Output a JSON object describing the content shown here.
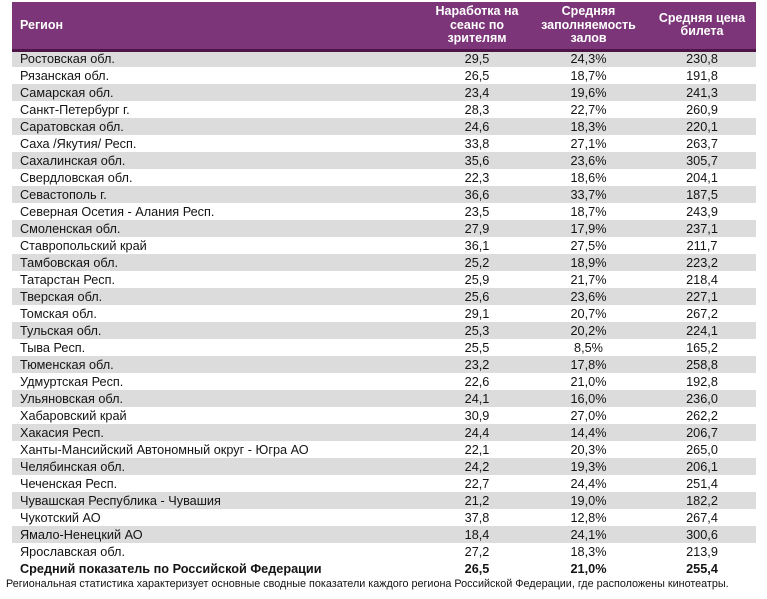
{
  "table": {
    "columns": [
      {
        "label": "Регион"
      },
      {
        "label": "Наработка на сеанс по зрителям"
      },
      {
        "label": "Средняя заполняемость залов"
      },
      {
        "label": "Средняя цена билета"
      }
    ],
    "rows": [
      [
        "Ростовская обл.",
        "29,5",
        "24,3%",
        "230,8"
      ],
      [
        "Рязанская обл.",
        "26,5",
        "18,7%",
        "191,8"
      ],
      [
        "Самарская обл.",
        "23,4",
        "19,6%",
        "241,3"
      ],
      [
        "Санкт-Петербург г.",
        "28,3",
        "22,7%",
        "260,9"
      ],
      [
        "Саратовская обл.",
        "24,6",
        "18,3%",
        "220,1"
      ],
      [
        "Саха /Якутия/ Респ.",
        "33,8",
        "27,1%",
        "263,7"
      ],
      [
        "Сахалинская обл.",
        "35,6",
        "23,6%",
        "305,7"
      ],
      [
        "Свердловская обл.",
        "22,3",
        "18,6%",
        "204,1"
      ],
      [
        "Севастополь г.",
        "36,6",
        "33,7%",
        "187,5"
      ],
      [
        "Северная Осетия - Алания Респ.",
        "23,5",
        "18,7%",
        "243,9"
      ],
      [
        "Смоленская обл.",
        "27,9",
        "17,9%",
        "237,1"
      ],
      [
        "Ставропольский край",
        "36,1",
        "27,5%",
        "211,7"
      ],
      [
        "Тамбовская обл.",
        "25,2",
        "18,9%",
        "223,2"
      ],
      [
        "Татарстан Респ.",
        "25,9",
        "21,7%",
        "218,4"
      ],
      [
        "Тверская обл.",
        "25,6",
        "23,6%",
        "227,1"
      ],
      [
        "Томская обл.",
        "29,1",
        "20,7%",
        "267,2"
      ],
      [
        "Тульская обл.",
        "25,3",
        "20,2%",
        "224,1"
      ],
      [
        "Тыва Респ.",
        "25,5",
        "8,5%",
        "165,2"
      ],
      [
        "Тюменская обл.",
        "23,2",
        "17,8%",
        "258,8"
      ],
      [
        "Удмуртская Респ.",
        "22,6",
        "21,0%",
        "192,8"
      ],
      [
        "Ульяновская обл.",
        "24,1",
        "16,0%",
        "236,0"
      ],
      [
        "Хабаровский край",
        "30,9",
        "27,0%",
        "262,2"
      ],
      [
        "Хакасия Респ.",
        "24,4",
        "14,4%",
        "206,7"
      ],
      [
        "Ханты-Мансийский Автономный округ - Югра АО",
        "22,1",
        "20,3%",
        "265,0"
      ],
      [
        "Челябинская обл.",
        "24,2",
        "19,3%",
        "206,1"
      ],
      [
        "Чеченская Респ.",
        "22,7",
        "24,4%",
        "251,4"
      ],
      [
        "Чувашская Республика - Чувашия",
        "21,2",
        "19,0%",
        "182,2"
      ],
      [
        "Чукотский АО",
        "37,8",
        "12,8%",
        "267,4"
      ],
      [
        "Ямало-Ненецкий АО",
        "18,4",
        "24,1%",
        "300,6"
      ],
      [
        "Ярославская обл.",
        "27,2",
        "18,3%",
        "213,9"
      ]
    ],
    "total_row": [
      "Средний показатель по Российской Федерации",
      "26,5",
      "21,0%",
      "255,4"
    ]
  },
  "footnote": "Региональная статистика характеризует основные сводные показатели каждого региона Российской Федерации, где расположены кинотеатры.",
  "colors": {
    "header_bg": "#7C3578",
    "header_border": "#4E1549",
    "stripe": "#DCDCDC"
  }
}
